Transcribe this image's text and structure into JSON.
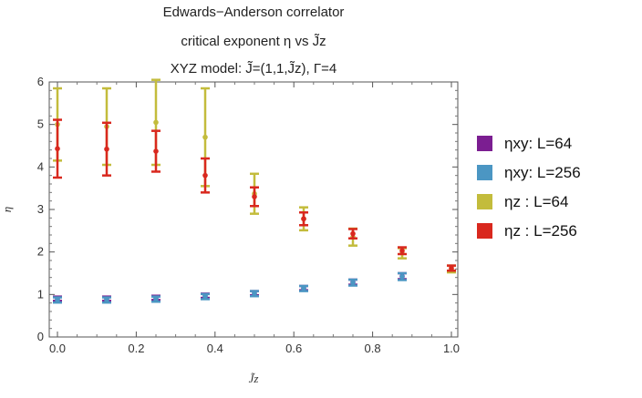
{
  "chart_data": {
    "type": "scatter",
    "title_lines": [
      "Edwards−Anderson correlator",
      "critical exponent η vs J̃z",
      "XYZ model: J̃=(1,1,J̃z), Γ=4"
    ],
    "xlabel": "J̃z",
    "ylabel": "η",
    "xlim": [
      0,
      1
    ],
    "ylim": [
      0,
      6
    ],
    "xticks": [
      "0.0",
      "0.2",
      "0.4",
      "0.6",
      "0.8",
      "1.0"
    ],
    "yticks": [
      "0",
      "1",
      "2",
      "3",
      "4",
      "5",
      "6"
    ],
    "grid": false,
    "legend_position": "right",
    "series": [
      {
        "name": "ηxy: L=64",
        "color": "#7b1e91",
        "x": [
          0,
          0.125,
          0.25,
          0.375,
          0.5,
          0.625,
          0.75,
          0.875
        ],
        "y": [
          0.9,
          0.9,
          0.92,
          0.97,
          1.03,
          1.15,
          1.29,
          1.43
        ],
        "err": [
          0.05,
          0.05,
          0.05,
          0.05,
          0.05,
          0.05,
          0.06,
          0.07
        ]
      },
      {
        "name": "ηxy: L=256",
        "color": "#4b96c3",
        "x": [
          0,
          0.125,
          0.25,
          0.375,
          0.5,
          0.625,
          0.75,
          0.875
        ],
        "y": [
          0.87,
          0.87,
          0.89,
          0.95,
          1.02,
          1.14,
          1.28,
          1.42
        ],
        "err": [
          0.06,
          0.06,
          0.06,
          0.06,
          0.06,
          0.06,
          0.07,
          0.08
        ]
      },
      {
        "name": "ηz  : L=64",
        "color": "#c3bc3c",
        "x": [
          0,
          0.125,
          0.25,
          0.375,
          0.5,
          0.625,
          0.75,
          0.875,
          1.0
        ],
        "y": [
          5.0,
          4.95,
          5.05,
          4.7,
          3.37,
          2.78,
          2.35,
          1.97,
          1.6
        ],
        "err": [
          0.85,
          0.9,
          1.0,
          1.15,
          0.47,
          0.27,
          0.2,
          0.12,
          0.08
        ]
      },
      {
        "name": "ηz  : L=256",
        "color": "#d9281e",
        "x": [
          0,
          0.125,
          0.25,
          0.375,
          0.5,
          0.625,
          0.75,
          0.875,
          1.0
        ],
        "y": [
          4.43,
          4.42,
          4.37,
          3.8,
          3.3,
          2.78,
          2.43,
          2.03,
          1.62
        ],
        "err": [
          0.68,
          0.62,
          0.48,
          0.4,
          0.22,
          0.15,
          0.11,
          0.08,
          0.06
        ]
      }
    ]
  }
}
